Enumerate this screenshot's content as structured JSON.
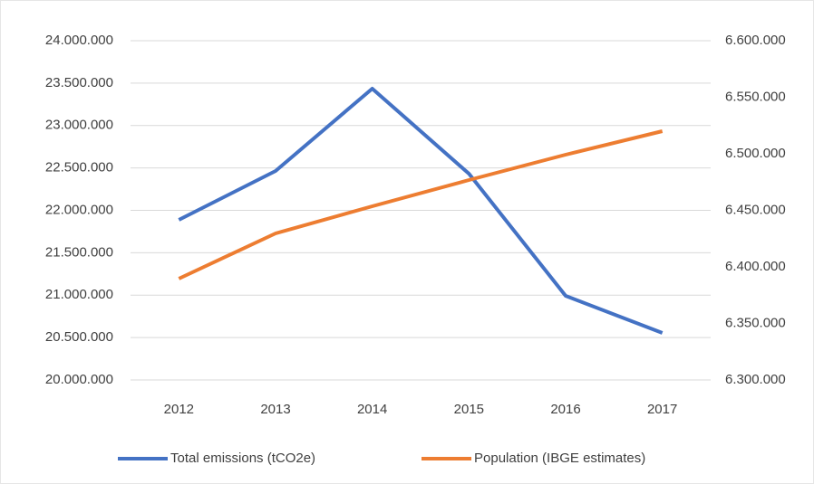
{
  "chart_data": {
    "type": "line",
    "categories": [
      "2012",
      "2013",
      "2014",
      "2015",
      "2016",
      "2017"
    ],
    "series": [
      {
        "name": "Total emissions (tCO2e)",
        "color": "#4472c4",
        "values": [
          21888000,
          22464000,
          23435000,
          22432000,
          20992000,
          20555000
        ]
      },
      {
        "name": "Population (IBGE estimates)",
        "color": "#ed7d31",
        "axis": "y2",
        "values": [
          6389600,
          6429600,
          6453600,
          6476800,
          6499200,
          6520000
        ]
      }
    ],
    "ylim": [
      20000000,
      24000000
    ],
    "yticks": [
      {
        "value": 20000000,
        "label": "20.000.000"
      },
      {
        "value": 20500000,
        "label": "20.500.000"
      },
      {
        "value": 21000000,
        "label": "21.000.000"
      },
      {
        "value": 21500000,
        "label": "21.500.000"
      },
      {
        "value": 22000000,
        "label": "22.000.000"
      },
      {
        "value": 22500000,
        "label": "22.500.000"
      },
      {
        "value": 23000000,
        "label": "23.000.000"
      },
      {
        "value": 23500000,
        "label": "23.500.000"
      },
      {
        "value": 24000000,
        "label": "24.000.000"
      }
    ],
    "y2lim": [
      6300000,
      6600000
    ],
    "y2ticks": [
      {
        "value": 6300000,
        "label": "6.300.000"
      },
      {
        "value": 6350000,
        "label": "6.350.000"
      },
      {
        "value": 6400000,
        "label": "6.400.000"
      },
      {
        "value": 6450000,
        "label": "6.450.000"
      },
      {
        "value": 6500000,
        "label": "6.500.000"
      },
      {
        "value": 6550000,
        "label": "6.550.000"
      },
      {
        "value": 6600000,
        "label": "6.600.000"
      }
    ],
    "grid": true,
    "legend": "bottom"
  }
}
